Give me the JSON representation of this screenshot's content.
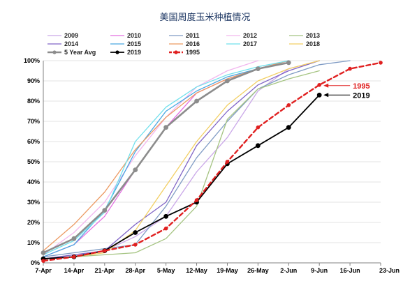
{
  "chart_data": {
    "type": "line",
    "title": "美国周度玉米种植情况",
    "xlabel": "",
    "ylabel": "",
    "categories": [
      "7-Apr",
      "14-Apr",
      "21-Apr",
      "28-Apr",
      "5-May",
      "12-May",
      "19-May",
      "26-May",
      "2-Jun",
      "9-Jun",
      "16-Jun",
      "23-Jun"
    ],
    "y_ticks": [
      "0%",
      "10%",
      "20%",
      "30%",
      "40%",
      "50%",
      "60%",
      "70%",
      "80%",
      "90%",
      "100%"
    ],
    "ylim": [
      0,
      100
    ],
    "grid": true,
    "legend_position": "top",
    "series": [
      {
        "name": "2009",
        "color": "#c9a6e8",
        "dash": "",
        "width": 1.3,
        "values": [
          2,
          4,
          6,
          13,
          23,
          45,
          62,
          85,
          96,
          100,
          null,
          null
        ]
      },
      {
        "name": "2010",
        "color": "#e36ee0",
        "dash": "",
        "width": 1.3,
        "values": [
          3,
          9,
          23,
          46,
          67,
          84,
          91,
          96,
          100,
          null,
          null,
          null
        ]
      },
      {
        "name": "2011",
        "color": "#7f9bc4",
        "dash": "",
        "width": 1.3,
        "values": [
          3,
          5,
          7,
          9,
          28,
          52,
          70,
          86,
          93,
          98,
          100,
          null
        ]
      },
      {
        "name": "2012",
        "color": "#f2b6ee",
        "dash": "",
        "width": 1.3,
        "values": [
          4,
          15,
          30,
          53,
          72,
          87,
          95,
          100,
          null,
          null,
          null,
          null
        ]
      },
      {
        "name": "2013",
        "color": "#a5c482",
        "dash": "",
        "width": 1.3,
        "values": [
          2,
          3,
          4,
          5,
          12,
          28,
          71,
          86,
          91,
          95,
          null,
          null
        ]
      },
      {
        "name": "2014",
        "color": "#8064c6",
        "dash": "",
        "width": 1.3,
        "values": [
          2,
          4,
          6,
          19,
          30,
          58,
          75,
          88,
          95,
          100,
          null,
          null
        ]
      },
      {
        "name": "2015",
        "color": "#49a6e1",
        "dash": "",
        "width": 1.3,
        "values": [
          3,
          9,
          26,
          55,
          75,
          85,
          92,
          96,
          100,
          null,
          null,
          null
        ]
      },
      {
        "name": "2016",
        "color": "#ec9a62",
        "dash": "",
        "width": 1.3,
        "values": [
          6,
          19,
          35,
          56,
          72,
          84,
          91,
          96,
          100,
          null,
          null,
          null
        ]
      },
      {
        "name": "2017",
        "color": "#6fe0ec",
        "dash": "",
        "width": 1.3,
        "values": [
          4,
          11,
          25,
          60,
          77,
          87,
          93,
          97,
          100,
          null,
          null,
          null
        ]
      },
      {
        "name": "2018",
        "color": "#f2cf63",
        "dash": "",
        "width": 1.3,
        "values": [
          2,
          3,
          5,
          16,
          38,
          60,
          78,
          90,
          96,
          100,
          null,
          null
        ]
      },
      {
        "name": "5 Year Avg",
        "color": "#8c8c8c",
        "dash": "",
        "width": 2.6,
        "marker": "circle",
        "values": [
          5,
          12,
          26,
          46,
          67,
          80,
          90,
          96,
          99,
          null,
          null,
          null
        ]
      },
      {
        "name": "2019",
        "color": "#000000",
        "dash": "",
        "width": 1.8,
        "marker": "circle",
        "values": [
          2,
          3,
          6,
          15,
          23,
          30,
          49,
          58,
          67,
          83,
          null,
          null
        ]
      },
      {
        "name": "1995",
        "color": "#e02020",
        "dash": "6,4",
        "width": 2.4,
        "marker": "circle",
        "values": [
          1,
          3,
          6,
          9,
          17,
          31,
          50,
          67,
          78,
          88,
          96,
          99
        ]
      }
    ],
    "annotations": [
      {
        "text": "1995",
        "color": "#e02020",
        "series": "1995",
        "category_index": 9
      },
      {
        "text": "2019",
        "color": "#000000",
        "series": "2019",
        "category_index": 9
      }
    ]
  }
}
